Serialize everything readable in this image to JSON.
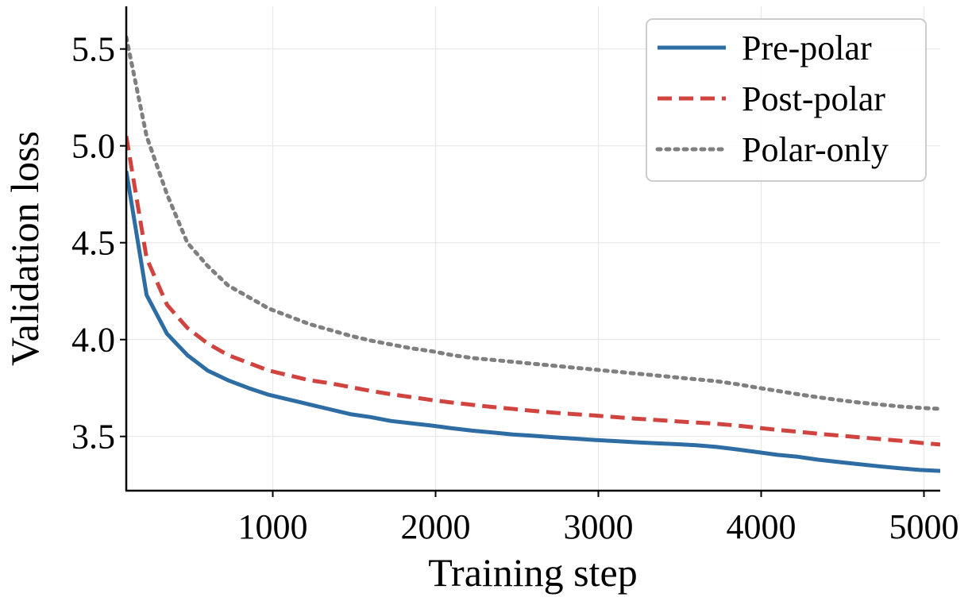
{
  "chart_data": {
    "type": "line",
    "title": "",
    "xlabel": "Training step",
    "ylabel": "Validation loss",
    "xlim": [
      100,
      5100
    ],
    "ylim": [
      3.22,
      5.72
    ],
    "x_ticks": [
      1000,
      2000,
      3000,
      4000,
      5000
    ],
    "y_ticks": [
      3.5,
      4.0,
      4.5,
      5.0,
      5.5
    ],
    "y_tick_labels": [
      "3.5",
      "4.0",
      "4.5",
      "5.0",
      "5.5"
    ],
    "grid": true,
    "legend_position": "top-right",
    "x": [
      100,
      225,
      350,
      475,
      600,
      725,
      850,
      975,
      1100,
      1225,
      1350,
      1475,
      1600,
      1725,
      1850,
      1975,
      2100,
      2225,
      2350,
      2475,
      2600,
      2725,
      2850,
      2975,
      3100,
      3225,
      3350,
      3475,
      3600,
      3725,
      3850,
      3975,
      4100,
      4225,
      4350,
      4475,
      4600,
      4725,
      4850,
      4975,
      5100
    ],
    "series": [
      {
        "name": "Pre-polar",
        "color": "#2e6da4",
        "style": "solid",
        "values": [
          4.87,
          4.23,
          4.03,
          3.92,
          3.84,
          3.79,
          3.75,
          3.715,
          3.69,
          3.665,
          3.64,
          3.615,
          3.6,
          3.58,
          3.568,
          3.556,
          3.542,
          3.53,
          3.52,
          3.51,
          3.503,
          3.496,
          3.489,
          3.482,
          3.476,
          3.47,
          3.465,
          3.46,
          3.455,
          3.446,
          3.433,
          3.419,
          3.405,
          3.395,
          3.38,
          3.368,
          3.357,
          3.346,
          3.336,
          3.327,
          3.322
        ]
      },
      {
        "name": "Post-polar",
        "color": "#d0433f",
        "style": "dashed",
        "values": [
          5.05,
          4.42,
          4.18,
          4.06,
          3.98,
          3.92,
          3.88,
          3.84,
          3.815,
          3.79,
          3.775,
          3.755,
          3.735,
          3.718,
          3.703,
          3.688,
          3.675,
          3.663,
          3.652,
          3.642,
          3.632,
          3.623,
          3.615,
          3.608,
          3.6,
          3.592,
          3.585,
          3.578,
          3.572,
          3.565,
          3.556,
          3.545,
          3.534,
          3.524,
          3.514,
          3.505,
          3.496,
          3.487,
          3.478,
          3.467,
          3.458
        ]
      },
      {
        "name": "Polar-only",
        "color": "#7f7f7f",
        "style": "dotted",
        "values": [
          5.56,
          5.05,
          4.75,
          4.5,
          4.38,
          4.28,
          4.22,
          4.16,
          4.12,
          4.08,
          4.05,
          4.02,
          3.995,
          3.975,
          3.955,
          3.94,
          3.92,
          3.905,
          3.895,
          3.885,
          3.875,
          3.865,
          3.855,
          3.845,
          3.835,
          3.825,
          3.815,
          3.805,
          3.795,
          3.785,
          3.77,
          3.752,
          3.735,
          3.718,
          3.702,
          3.688,
          3.675,
          3.665,
          3.655,
          3.648,
          3.642
        ]
      }
    ]
  }
}
